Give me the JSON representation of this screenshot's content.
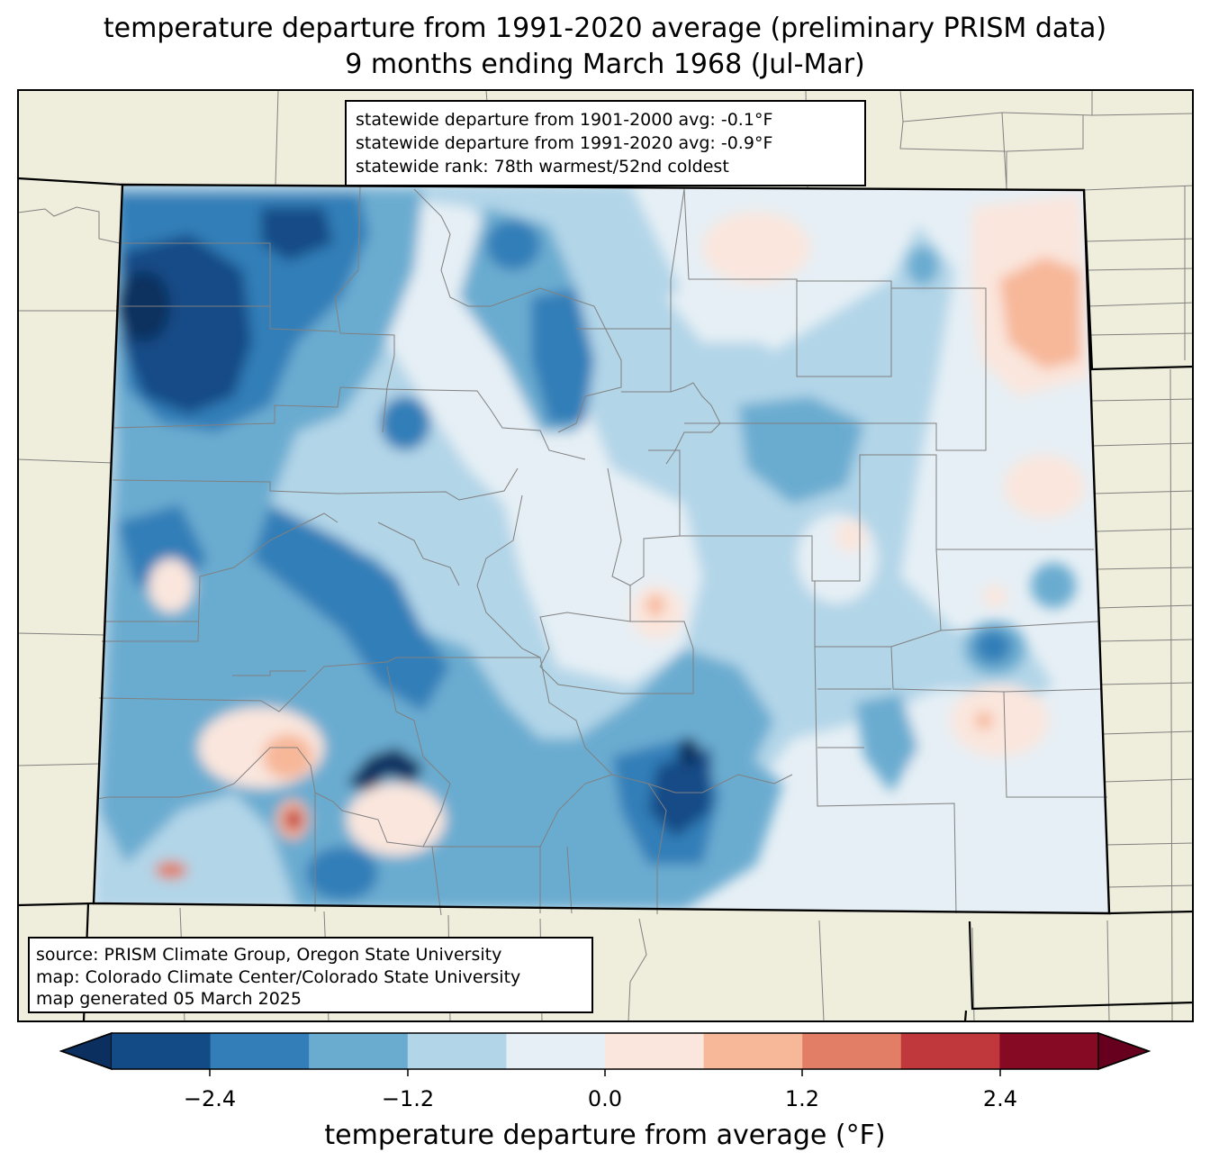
{
  "title": {
    "line1": "temperature departure from 1991-2020 average (preliminary PRISM data)",
    "line2": "9 months ending March 1968 (Jul-Mar)"
  },
  "stats": {
    "line1": "statewide departure from 1901-2000 avg: -0.1°F",
    "line2": "statewide departure from 1991-2020 avg: -0.9°F",
    "line3": "statewide rank: 78th warmest/52nd coldest"
  },
  "source": {
    "line1": "source: PRISM Climate Group, Oregon State University",
    "line2": "map: Colorado Climate Center/Colorado State University",
    "line3": "map generated 05 March 2025"
  },
  "colorbar": {
    "label": "temperature departure from average (°F)",
    "ticks": [
      "−2.4",
      "−1.2",
      "0.0",
      "1.2",
      "2.4"
    ],
    "colors": [
      "#0b3060",
      "#134b87",
      "#337eb8",
      "#6aacd0",
      "#b2d5e8",
      "#e6eff5",
      "#fae6dd",
      "#f7b799",
      "#e17e65",
      "#c1383c",
      "#870a24",
      "#67001f"
    ],
    "min_extend_color": "#0b3060",
    "max_extend_color": "#67001f"
  },
  "map_colors": {
    "land_outside": "#efeedc",
    "state_border": "#000000",
    "county_border": "#808080"
  }
}
